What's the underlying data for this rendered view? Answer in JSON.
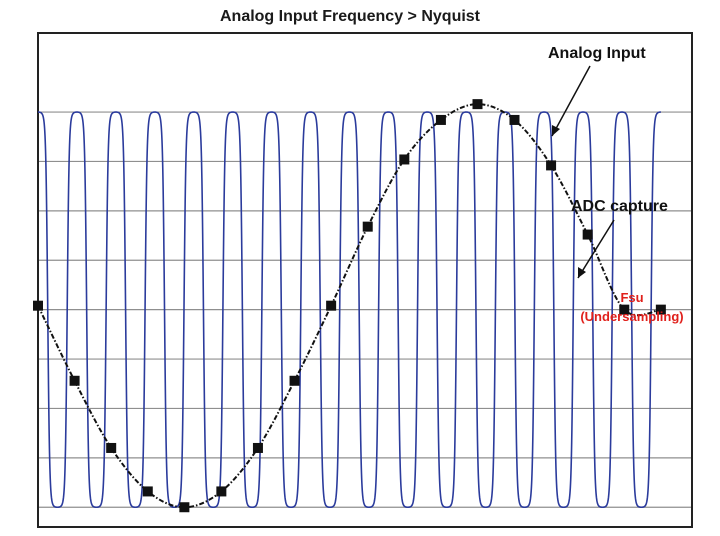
{
  "chart_data": {
    "type": "line",
    "title": "Analog Input Frequency > Nyquist",
    "xlabel": "",
    "ylabel": "",
    "grid": true,
    "gridlines_y": [
      -1.0,
      -0.75,
      -0.5,
      -0.25,
      0.0,
      0.25,
      0.5,
      0.75,
      1.0
    ],
    "xlim": [
      0,
      16.8
    ],
    "ylim": [
      -1.1,
      1.4
    ],
    "series": [
      {
        "name": "Analog Input",
        "style": "solid",
        "frequency_cycles": 16,
        "x_range": [
          0,
          16.0
        ],
        "amplitude": 1.0
      },
      {
        "name": "ADC capture",
        "style": "dashed-with-square-markers",
        "x": [
          0,
          0.94,
          1.88,
          2.82,
          3.76,
          4.71,
          5.65,
          6.59,
          7.53,
          8.47,
          9.41,
          10.35,
          11.29,
          12.24,
          13.18,
          14.12,
          15.06,
          16.0
        ],
        "y": [
          0.02,
          -0.36,
          -0.7,
          -0.92,
          -1.0,
          -0.92,
          -0.7,
          -0.36,
          0.02,
          0.42,
          0.76,
          0.96,
          1.04,
          0.96,
          0.73,
          0.38,
          0.0,
          0.0
        ]
      }
    ],
    "annotations": [
      {
        "text": "Analog Input",
        "target": "Analog Input"
      },
      {
        "text": "ADC capture",
        "target": "ADC capture"
      },
      {
        "text": "Fsu",
        "color": "#e0201b"
      },
      {
        "text": "(Undersampling)",
        "color": "#e0201b"
      }
    ],
    "colors": {
      "analog": "#2b3b9c",
      "capture": "#111111",
      "grid": "#8f8f8f",
      "frame": "#222222",
      "accent_red": "#e0201b"
    }
  }
}
